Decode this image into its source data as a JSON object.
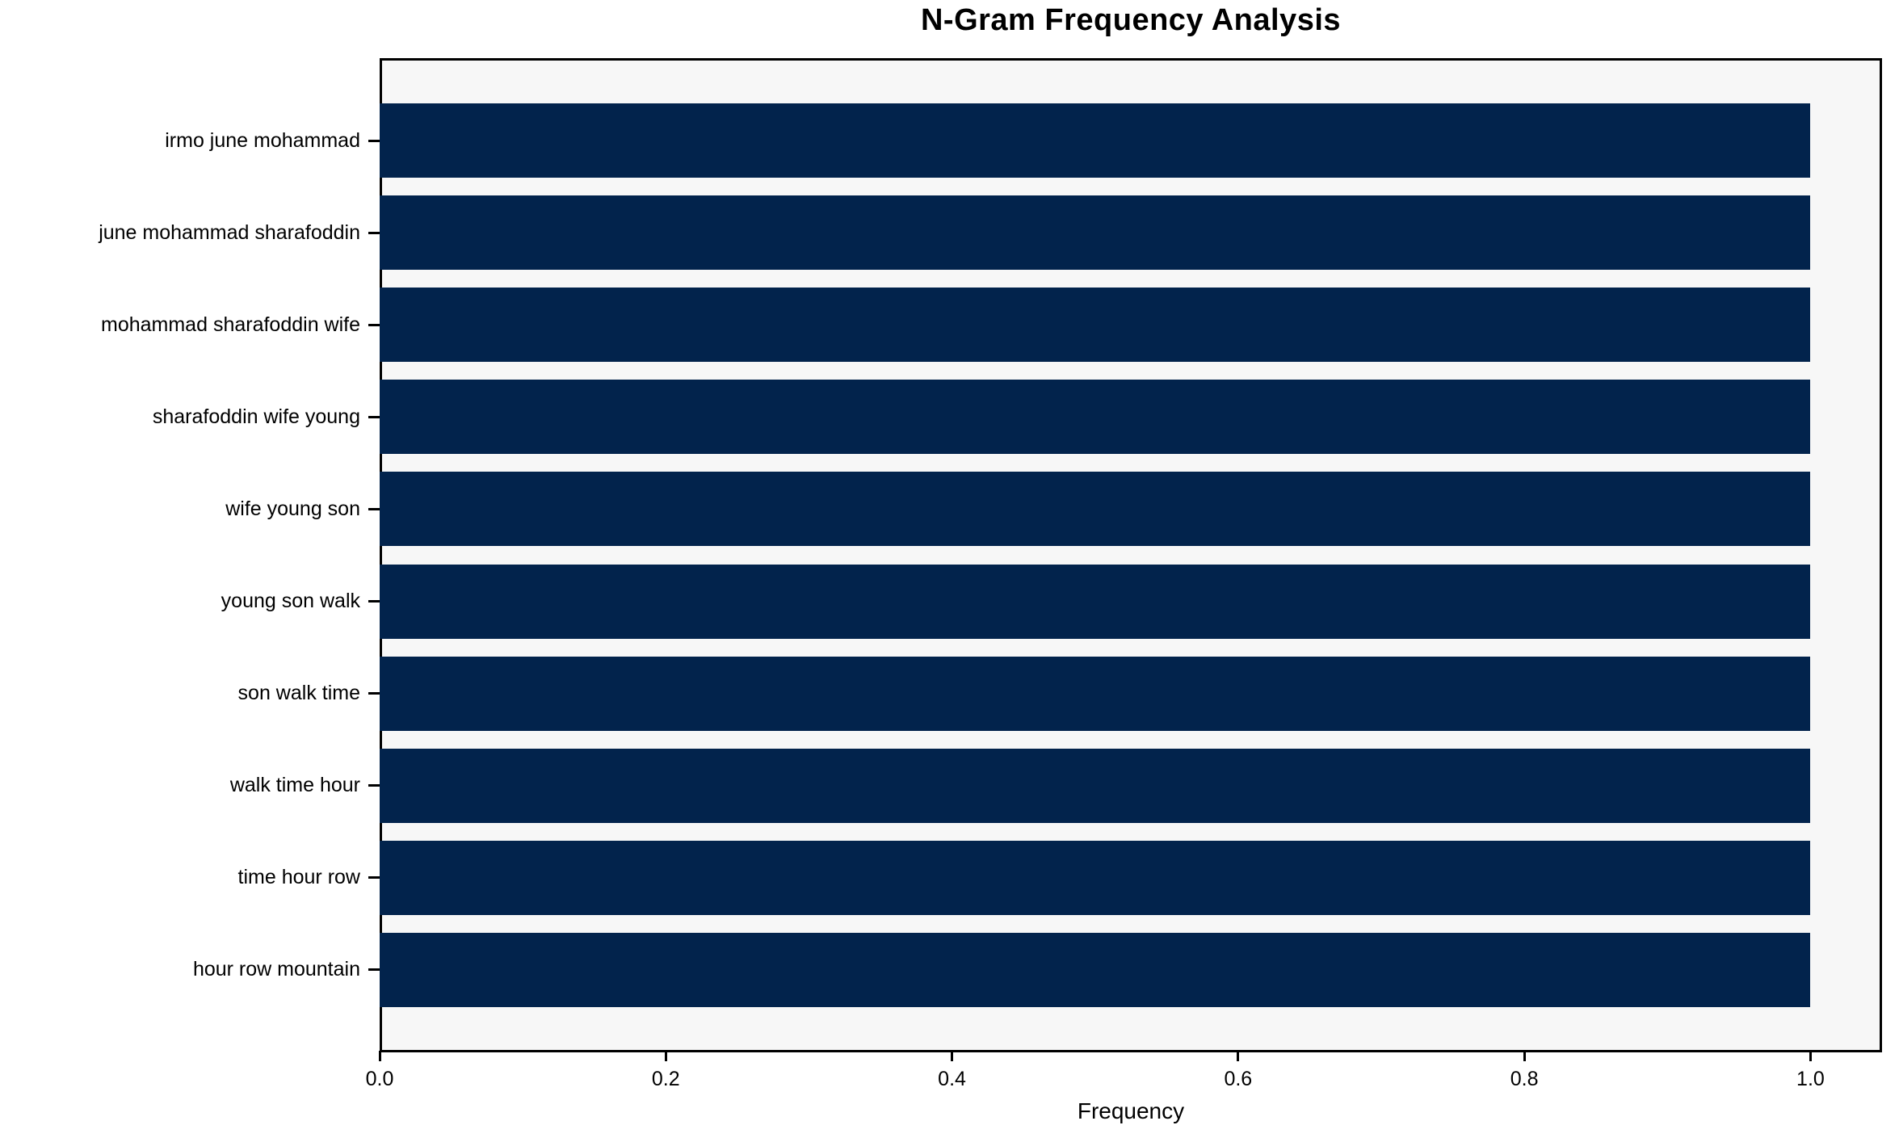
{
  "chart_data": {
    "type": "bar",
    "orientation": "horizontal",
    "title": "N-Gram Frequency Analysis",
    "xlabel": "Frequency",
    "ylabel": "",
    "categories": [
      "irmo june mohammad",
      "june mohammad sharafoddin",
      "mohammad sharafoddin wife",
      "sharafoddin wife young",
      "wife young son",
      "young son walk",
      "son walk time",
      "walk time hour",
      "time hour row",
      "hour row mountain"
    ],
    "values": [
      1.0,
      1.0,
      1.0,
      1.0,
      1.0,
      1.0,
      1.0,
      1.0,
      1.0,
      1.0
    ],
    "x_ticks": [
      {
        "label": "0.0",
        "value": 0.0
      },
      {
        "label": "0.2",
        "value": 0.2
      },
      {
        "label": "0.4",
        "value": 0.4
      },
      {
        "label": "0.6",
        "value": 0.6
      },
      {
        "label": "0.8",
        "value": 0.8
      },
      {
        "label": "1.0",
        "value": 1.0
      }
    ],
    "xlim": [
      0,
      1.05
    ],
    "grid": false,
    "legend": "none",
    "bar_color": "#02234c",
    "plot_background": "#f7f7f7",
    "figure_background": "#ffffff",
    "axis_color": "#000000"
  }
}
